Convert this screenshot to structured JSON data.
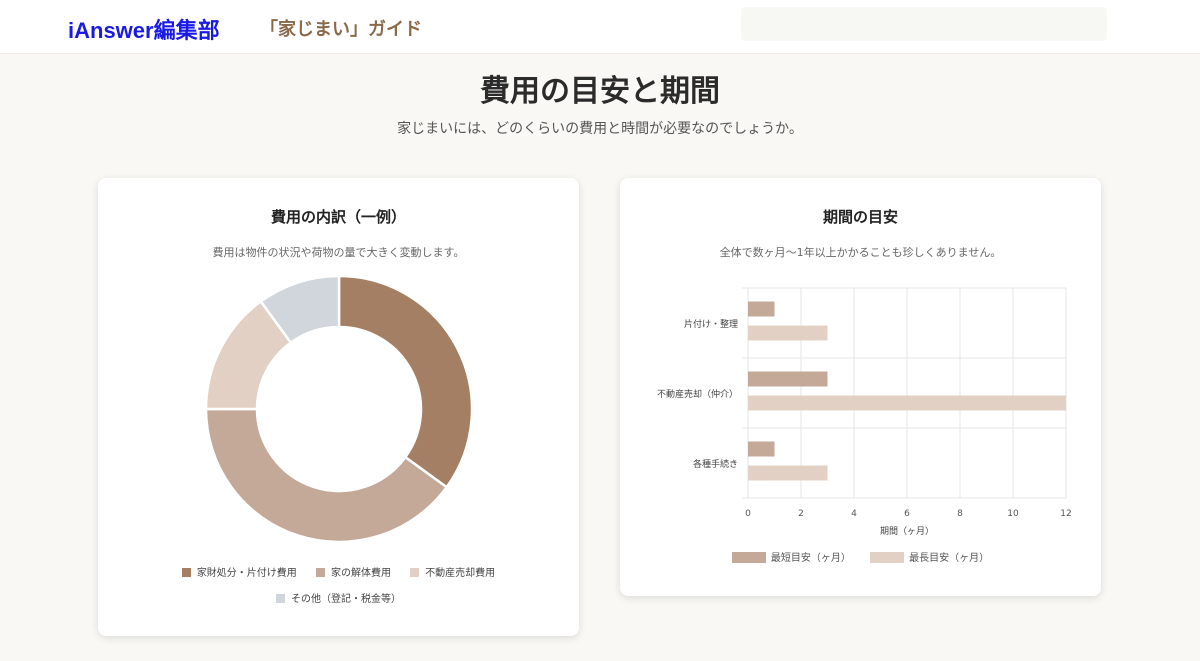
{
  "header": {
    "brand": "iAnswer編集部",
    "guide": "「家じまい」ガイド"
  },
  "page": {
    "title": "費用の目安と期間",
    "subtitle": "家じまいには、どのくらいの費用と時間が必要なのでしょうか。"
  },
  "cost_card": {
    "title": "費用の内訳（一例）",
    "description": "費用は物件の状況や荷物の量で大きく変動します。"
  },
  "period_card": {
    "title": "期間の目安",
    "description": "全体で数ヶ月〜1年以上かかることも珍しくありません。"
  },
  "chart_data": [
    {
      "type": "pie",
      "variant": "doughnut",
      "title": "費用の内訳（一例）",
      "labels": [
        "家財処分・片付け費用",
        "家の解体費用",
        "不動産売却費用",
        "その他（登記・税金等）"
      ],
      "values": [
        35,
        40,
        15,
        10
      ],
      "colors": [
        "#a47f64",
        "#c4a898",
        "#e2d0c4",
        "#d1d5dc"
      ],
      "legend": "bottom"
    },
    {
      "type": "bar",
      "orientation": "horizontal",
      "title": "期間の目安",
      "categories": [
        "片付け・整理",
        "不動産売却（仲介）",
        "各種手続き"
      ],
      "series": [
        {
          "name": "最短目安（ヶ月）",
          "values": [
            1,
            3,
            1
          ],
          "color": "#c4a898"
        },
        {
          "name": "最長目安（ヶ月）",
          "values": [
            3,
            12,
            3
          ],
          "color": "#e2d0c4"
        }
      ],
      "xlabel": "期間（ヶ月）",
      "ylabel": "",
      "xlim": [
        0,
        12
      ],
      "xticks": [
        0,
        2,
        4,
        6,
        8,
        10,
        12
      ],
      "grid": true,
      "legend": "bottom"
    }
  ]
}
